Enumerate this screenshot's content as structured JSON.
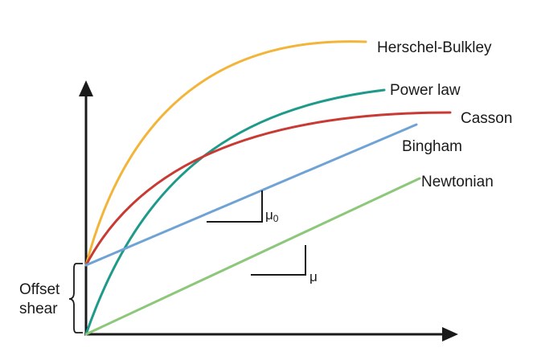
{
  "diagram": {
    "curves": [
      {
        "key": "herschel",
        "label": "Herschel-Bulkley",
        "color": "#F2B53A"
      },
      {
        "key": "power",
        "label": "Power law",
        "color": "#1E9A8A"
      },
      {
        "key": "casson",
        "label": "Casson",
        "color": "#C83A33"
      },
      {
        "key": "bingham",
        "label": "Bingham",
        "color": "#6FA3D6"
      },
      {
        "key": "newtonian",
        "label": "Newtonian",
        "color": "#8CC77A"
      }
    ],
    "slope_labels": {
      "mu0": "μ",
      "mu0_sub": "0",
      "mu": "μ"
    },
    "offset_label": {
      "line1": "Offset",
      "line2": "shear"
    },
    "axis_color": "#1a1a1a"
  }
}
